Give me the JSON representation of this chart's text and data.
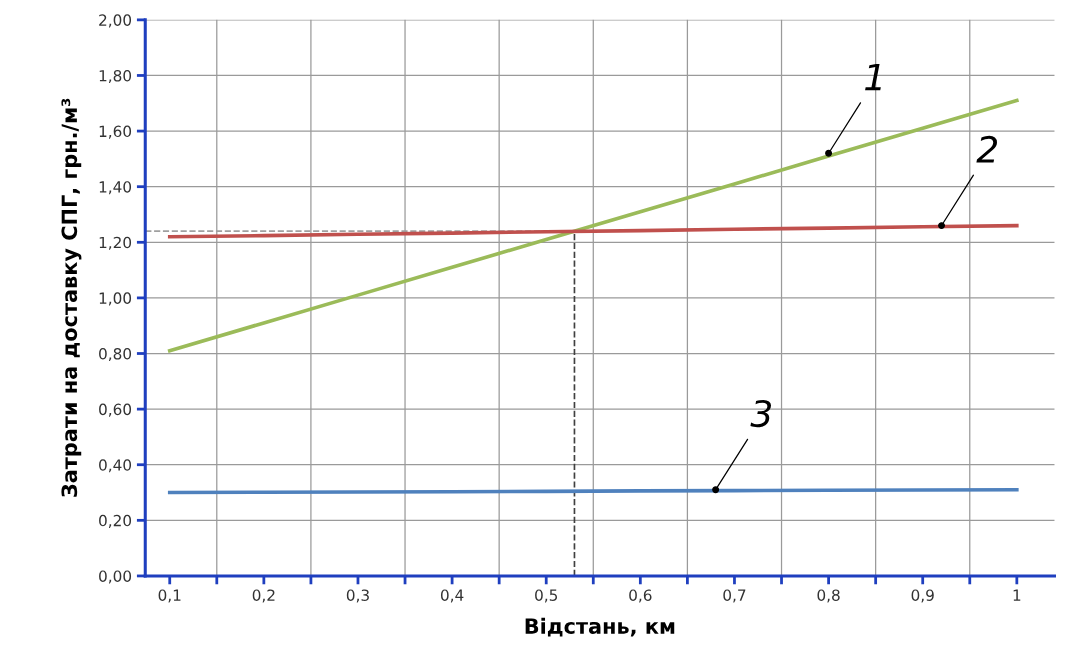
{
  "chart_data": {
    "type": "line",
    "xlabel": "Відстань, км",
    "ylabel": "Затрати на доставку СПГ, грн./м³",
    "x": [
      0.1,
      0.2,
      0.3,
      0.4,
      0.5,
      0.6,
      0.7,
      0.8,
      0.9,
      1.0
    ],
    "series": [
      {
        "color": "#9bbb59",
        "values": [
          0.81,
          0.91,
          1.01,
          1.11,
          1.21,
          1.31,
          1.41,
          1.51,
          1.61,
          1.71
        ]
      },
      {
        "color": "#c0504d",
        "values": [
          1.22,
          1.224,
          1.229,
          1.233,
          1.238,
          1.242,
          1.247,
          1.251,
          1.256,
          1.26
        ]
      },
      {
        "color": "#4f81bd",
        "values": [
          0.3,
          0.301,
          0.302,
          0.303,
          0.304,
          0.306,
          0.307,
          0.308,
          0.309,
          0.31
        ]
      }
    ],
    "xlim": [
      0.074,
      1.04
    ],
    "xticks": [
      {
        "value": 0.1,
        "label": "0,1"
      },
      {
        "value": 0.15,
        "label": null
      },
      {
        "value": 0.2,
        "label": "0,2"
      },
      {
        "value": 0.25,
        "label": null
      },
      {
        "value": 0.3,
        "label": "0,3"
      },
      {
        "value": 0.35,
        "label": null
      },
      {
        "value": 0.4,
        "label": "0,4"
      },
      {
        "value": 0.45,
        "label": null
      },
      {
        "value": 0.5,
        "label": "0,5"
      },
      {
        "value": 0.55,
        "label": null
      },
      {
        "value": 0.6,
        "label": "0,6"
      },
      {
        "value": 0.65,
        "label": null
      },
      {
        "value": 0.7,
        "label": "0,7"
      },
      {
        "value": 0.75,
        "label": null
      },
      {
        "value": 0.8,
        "label": "0,8"
      },
      {
        "value": 0.85,
        "label": null
      },
      {
        "value": 0.9,
        "label": "0,9"
      },
      {
        "value": 0.95,
        "label": null
      },
      1
    ],
    "ylim": [
      0,
      2
    ],
    "yticks": [
      {
        "value": 0,
        "label": "0,00"
      },
      {
        "value": 0.2,
        "label": "0,20"
      },
      {
        "value": 0.4,
        "label": "0,40"
      },
      {
        "value": 0.6,
        "label": "0,60"
      },
      {
        "value": 0.8,
        "label": "0,80"
      },
      {
        "value": 1.0,
        "label": "1,00"
      },
      {
        "value": 1.2,
        "label": "1,20"
      },
      {
        "value": 1.4,
        "label": "1,40"
      },
      {
        "value": 1.6,
        "label": "1,60"
      },
      {
        "value": 1.8,
        "label": "1,80"
      },
      {
        "value": 2.0,
        "label": "2,00"
      }
    ],
    "grid": true,
    "marker": "none",
    "line_style": "solid",
    "ref_lines": [
      {
        "axis": "y",
        "value": 1.24,
        "color": "#a0a0a0",
        "line_style": "dashed"
      },
      {
        "axis": "x",
        "value": 0.53,
        "color": "#404040",
        "line_style": "dashed"
      }
    ],
    "annotations": [
      {
        "text": "1",
        "x": 0.8,
        "y": 1.52
      },
      {
        "text": "2",
        "x": 0.92,
        "y": 1.26
      },
      {
        "text": "3",
        "x": 0.68,
        "y": 0.31
      }
    ]
  }
}
